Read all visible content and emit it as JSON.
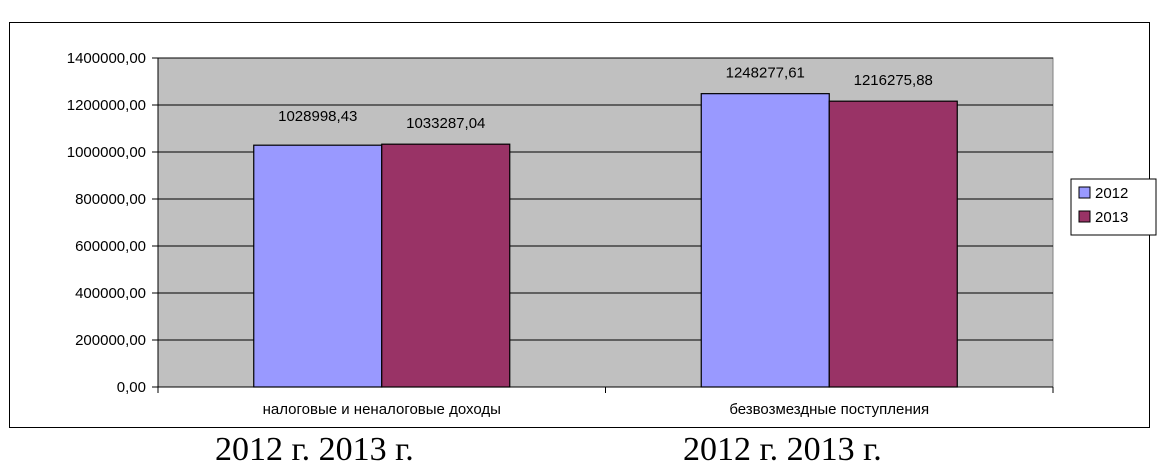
{
  "chart_data": {
    "type": "bar",
    "title": "",
    "xlabel": "",
    "ylabel": "",
    "categories": [
      "налоговые и неналоговые доходы",
      "безвозмездные поступления"
    ],
    "series": [
      {
        "name": "2012",
        "color": "#9999ff",
        "values": [
          1028998.43,
          1248277.61
        ],
        "labels": [
          "1028998,43",
          "1248277,61"
        ]
      },
      {
        "name": "2013",
        "color": "#993366",
        "values": [
          1033287.04,
          1216275.88
        ],
        "labels": [
          "1033287,04",
          "1216275,88"
        ]
      }
    ],
    "ylim": [
      0,
      1400000
    ],
    "yticks": [
      0,
      200000,
      400000,
      600000,
      800000,
      1000000,
      1200000,
      1400000
    ],
    "ytick_labels": [
      "0,00",
      "200000,00",
      "400000,00",
      "600000,00",
      "800000,00",
      "1000000,00",
      "1200000,00",
      "1400000,00"
    ],
    "plot_background": "#c0c0c0",
    "grid": true,
    "legend_position": "right"
  },
  "captions": [
    {
      "text": "2012 г.   2013 г."
    },
    {
      "text": "2012 г.   2013 г."
    }
  ]
}
